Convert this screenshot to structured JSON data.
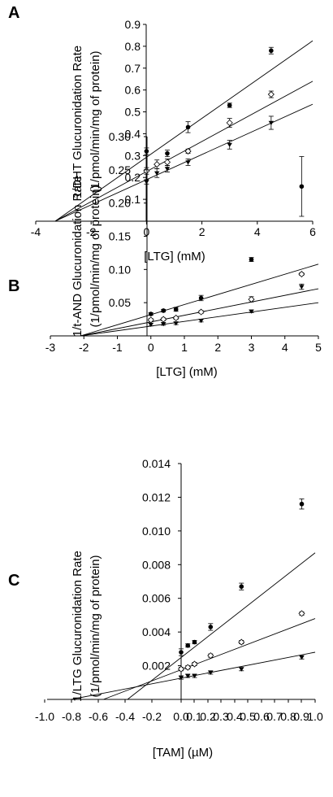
{
  "chart_data": [
    {
      "type": "scatter",
      "panel_label": "A",
      "ylabel_line1": "1/DHT Glucuronidation Rate",
      "ylabel_line2": "(1/pmol/min/mg of protein)",
      "xlabel": "[LTG] (mM)",
      "xlim": [
        -4,
        6
      ],
      "ylim": [
        0,
        0.9
      ],
      "x_ticks": [
        "-4",
        "-2",
        "0",
        "2",
        "4",
        "6"
      ],
      "y_ticks": [
        "0.1",
        "0.2",
        "0.3",
        "0.4",
        "0.5",
        "0.6",
        "0.7",
        "0.8",
        "0.9"
      ],
      "series": [
        {
          "marker": "filled-circle",
          "x": [
            0,
            0.75,
            1.5,
            3,
            4.5
          ],
          "y": [
            0.32,
            0.31,
            0.43,
            0.53,
            0.78
          ],
          "err": [
            0.015,
            0.015,
            0.025,
            0.01,
            0.015
          ],
          "line": [
            [
              -3.3,
              0
            ],
            [
              6,
              0.825
            ]
          ]
        },
        {
          "marker": "open-diamond",
          "x": [
            0,
            0.375,
            0.75,
            1.5,
            3,
            4.5
          ],
          "y": [
            0.23,
            0.26,
            0.27,
            0.32,
            0.45,
            0.58
          ],
          "err": [
            0.015,
            0.02,
            0.015,
            0.01,
            0.02,
            0.015
          ],
          "line": [
            [
              -3.3,
              0
            ],
            [
              6,
              0.64
            ]
          ]
        },
        {
          "marker": "filled-triangle",
          "x": [
            0,
            0.375,
            0.75,
            1.5,
            3,
            4.5
          ],
          "y": [
            0.18,
            0.22,
            0.24,
            0.27,
            0.35,
            0.45
          ],
          "err": [
            0.01,
            0.02,
            0.015,
            0.015,
            0.02,
            0.03
          ],
          "line": [
            [
              -3.3,
              0
            ],
            [
              6,
              0.535
            ]
          ]
        }
      ]
    },
    {
      "type": "scatter",
      "panel_label": "B",
      "ylabel_line1": "1/t-AND Glucuronidation Rate",
      "ylabel_line2": "(1/pmol/min/mg of protein)",
      "xlabel": "[LTG] (mM)",
      "xlim": [
        -3,
        5
      ],
      "ylim": [
        0,
        0.3
      ],
      "x_ticks": [
        "-3",
        "-2",
        "-1",
        "0",
        "1",
        "2",
        "3",
        "4",
        "5"
      ],
      "y_ticks": [
        "0.05",
        "0.10",
        "0.15",
        "0.20",
        "0.25",
        "0.30"
      ],
      "series": [
        {
          "marker": "filled-circle",
          "x": [
            0,
            0.375,
            0.75,
            1.5,
            3,
            4.5
          ],
          "y": [
            0.033,
            0.038,
            0.04,
            0.057,
            0.115,
            0.225
          ],
          "err": [
            0.002,
            0.002,
            0.003,
            0.004,
            0.003,
            0.045
          ],
          "line": [
            [
              -2.1,
              0
            ],
            [
              5,
              0.108
            ]
          ]
        },
        {
          "marker": "open-diamond",
          "x": [
            0,
            0.375,
            0.75,
            1.5,
            3,
            4.5
          ],
          "y": [
            0.024,
            0.025,
            0.027,
            0.036,
            0.055,
            0.093
          ],
          "err": [
            0.002,
            0.002,
            0.002,
            0.002,
            0.004,
            0.002
          ],
          "line": [
            [
              -2.1,
              0
            ],
            [
              5,
              0.071
            ]
          ]
        },
        {
          "marker": "filled-triangle",
          "x": [
            0,
            0.375,
            0.75,
            1.5,
            3,
            4.5
          ],
          "y": [
            0.017,
            0.018,
            0.019,
            0.023,
            0.037,
            0.074
          ],
          "err": [
            0.002,
            0.002,
            0.002,
            0.002,
            0.002,
            0.004
          ],
          "line": [
            [
              -2.1,
              0
            ],
            [
              5,
              0.05
            ]
          ]
        }
      ]
    },
    {
      "type": "scatter",
      "panel_label": "C",
      "ylabel_line1": "1/LTG Glucuronidation Rate",
      "ylabel_line2": "(1/pmol/min/mg of protein)",
      "xlabel": "[TAM] (µM)",
      "xlim": [
        -1.0,
        1.0
      ],
      "ylim": [
        0,
        0.014
      ],
      "x_ticks": [
        "-1.0",
        "-0.8",
        "-0.6",
        "-0.4",
        "-0.2",
        "0.0",
        "0.1",
        "0.2",
        "0.3",
        "0.4",
        "0.5",
        "0.6",
        "0.7",
        "0.8",
        "0.9",
        "1.0"
      ],
      "y_ticks": [
        "0.002",
        "0.004",
        "0.006",
        "0.008",
        "0.010",
        "0.012",
        "0.014"
      ],
      "series": [
        {
          "marker": "filled-circle",
          "x": [
            0,
            0.05,
            0.1,
            0.22,
            0.45,
            0.9
          ],
          "y": [
            0.0028,
            0.0032,
            0.0034,
            0.0043,
            0.0067,
            0.0116
          ],
          "err": [
            0.0002,
            0.0001,
            0.0001,
            0.0002,
            0.0002,
            0.0003
          ],
          "line": [
            [
              -0.4,
              0
            ],
            [
              1.0,
              0.0087
            ]
          ]
        },
        {
          "marker": "open-diamond",
          "x": [
            0,
            0.05,
            0.1,
            0.22,
            0.45,
            0.9
          ],
          "y": [
            0.0018,
            0.0019,
            0.0021,
            0.0026,
            0.0034,
            0.0051
          ],
          "err": [
            0.0001,
            0.0001,
            0.0001,
            0.0001,
            0.0001,
            0.0001
          ],
          "line": [
            [
              -0.58,
              0
            ],
            [
              1.0,
              0.0048
            ]
          ]
        },
        {
          "marker": "filled-triangle",
          "x": [
            0,
            0.05,
            0.1,
            0.22,
            0.45,
            0.9
          ],
          "y": [
            0.0013,
            0.0014,
            0.0014,
            0.0016,
            0.0018,
            0.0025
          ],
          "err": [
            0.0001,
            0.0001,
            0.0001,
            0.0001,
            0.0001,
            0.0001
          ],
          "line": [
            [
              -0.82,
              0
            ],
            [
              1.0,
              0.0028
            ]
          ]
        }
      ]
    }
  ]
}
